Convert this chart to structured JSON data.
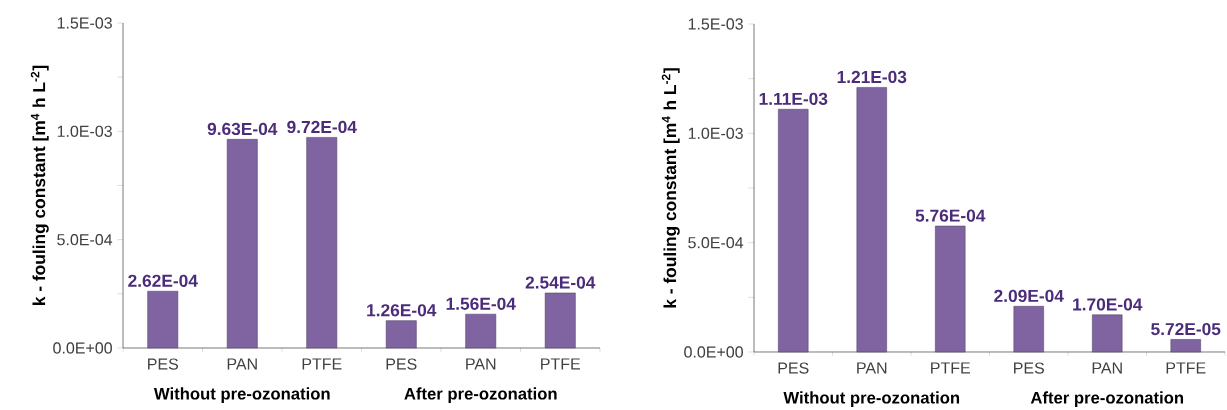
{
  "chart_data": [
    {
      "type": "bar",
      "ylabel": "k - fouling constant [m$^{4}$ h L$^{-2}$]",
      "categories": [
        "PES",
        "PAN",
        "PTFE",
        "PES",
        "PAN",
        "PTFE"
      ],
      "values": [
        0.000262,
        0.000963,
        0.000972,
        0.000126,
        0.000156,
        0.000254
      ],
      "value_labels": [
        "2.62E-04",
        "9.63E-04",
        "9.72E-04",
        "1.26E-04",
        "1.56E-04",
        "2.54E-04"
      ],
      "color": "#8064a2",
      "ylim": [
        0,
        0.0015
      ],
      "yticks": [
        {
          "value": 0,
          "label": "0.0E+00"
        },
        {
          "value": 0.00025,
          "label": null
        },
        {
          "value": 0.0005,
          "label": "5.0E-04"
        },
        {
          "value": 0.00075,
          "label": null
        },
        {
          "value": 0.001,
          "label": "1.0E-03"
        },
        {
          "value": 0.00125,
          "label": null
        },
        {
          "value": 0.0015,
          "label": "1.5E-03"
        }
      ],
      "annotations": [
        "Without pre-ozonation",
        "After pre-ozonation"
      ]
    },
    {
      "type": "bar",
      "ylabel": "k - fouling constant [m$^{4}$ h L$^{-2}$]",
      "categories": [
        "PES",
        "PAN",
        "PTFE",
        "PES",
        "PAN",
        "PTFE"
      ],
      "values": [
        0.00111,
        0.00121,
        0.000576,
        0.000209,
        0.00017,
        5.72e-05
      ],
      "value_labels": [
        "1.11E-03",
        "1.21E-03",
        "5.76E-04",
        "2.09E-04",
        "1.70E-04",
        "5.72E-05"
      ],
      "color": "#8064a2",
      "ylim": [
        0,
        0.0015
      ],
      "yticks": [
        {
          "value": 0,
          "label": "0.0E+00"
        },
        {
          "value": 0.00025,
          "label": null
        },
        {
          "value": 0.0005,
          "label": "5.0E-04"
        },
        {
          "value": 0.00075,
          "label": null
        },
        {
          "value": 0.001,
          "label": "1.0E-03"
        },
        {
          "value": 0.00125,
          "label": null
        },
        {
          "value": 0.0015,
          "label": "1.5E-03"
        }
      ],
      "annotations": [
        "Without pre-ozonation",
        "After pre-ozonation"
      ]
    }
  ]
}
